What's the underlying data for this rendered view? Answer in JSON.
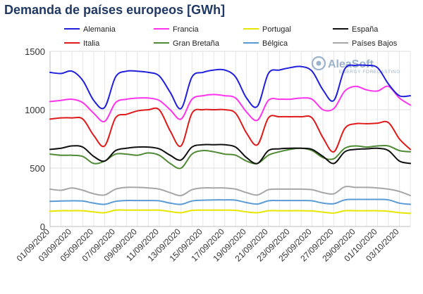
{
  "title": "Demanda de países europeos [GWh]",
  "watermark": {
    "brand": "AleaSoft",
    "tagline": "ENERGY FORECASTING"
  },
  "chart_data": {
    "type": "line",
    "title": "Demanda de países europeos [GWh]",
    "xlabel": "",
    "ylabel": "",
    "ylim": [
      0,
      1500
    ],
    "yticks": [
      0,
      500,
      1000,
      1500
    ],
    "grid": true,
    "legend_position": "top",
    "x": [
      "01/09/2020",
      "02/09/2020",
      "03/09/2020",
      "04/09/2020",
      "05/09/2020",
      "06/09/2020",
      "07/09/2020",
      "08/09/2020",
      "09/09/2020",
      "10/09/2020",
      "11/09/2020",
      "12/09/2020",
      "13/09/2020",
      "14/09/2020",
      "15/09/2020",
      "16/09/2020",
      "17/09/2020",
      "18/09/2020",
      "19/09/2020",
      "20/09/2020",
      "21/09/2020",
      "22/09/2020",
      "23/09/2020",
      "24/09/2020",
      "25/09/2020",
      "26/09/2020",
      "27/09/2020",
      "28/09/2020",
      "29/09/2020",
      "30/09/2020",
      "01/10/2020",
      "02/10/2020",
      "03/10/2020",
      "04/10/2020"
    ],
    "xtick_labels": [
      "01/09/2020",
      "03/09/2020",
      "05/09/2020",
      "07/09/2020",
      "09/09/2020",
      "11/09/2020",
      "13/09/2020",
      "15/09/2020",
      "17/09/2020",
      "19/09/2020",
      "21/09/2020",
      "23/09/2020",
      "25/09/2020",
      "27/09/2020",
      "29/09/2020",
      "01/10/2020",
      "03/10/2020"
    ],
    "series": [
      {
        "name": "Alemania",
        "color": "#1f1fdc",
        "values": [
          1320,
          1310,
          1330,
          1250,
          1080,
          1020,
          1280,
          1330,
          1330,
          1320,
          1290,
          1150,
          1010,
          1280,
          1320,
          1340,
          1340,
          1280,
          1100,
          1030,
          1310,
          1340,
          1360,
          1370,
          1330,
          1170,
          1080,
          1350,
          1380,
          1380,
          1360,
          1220,
          1120,
          1120
        ]
      },
      {
        "name": "Francia",
        "color": "#ff33ee",
        "values": [
          1070,
          1080,
          1090,
          1060,
          970,
          900,
          1060,
          1090,
          1100,
          1100,
          1080,
          1000,
          920,
          1090,
          1120,
          1130,
          1120,
          1100,
          980,
          910,
          1080,
          1090,
          1090,
          1100,
          1090,
          1000,
          1010,
          1160,
          1200,
          1170,
          1160,
          1200,
          1100,
          1040
        ]
      },
      {
        "name": "Portugal",
        "color": "#e6e600",
        "values": [
          130,
          135,
          135,
          135,
          125,
          118,
          140,
          140,
          140,
          140,
          140,
          128,
          118,
          138,
          140,
          140,
          140,
          138,
          125,
          118,
          135,
          135,
          135,
          135,
          133,
          123,
          115,
          135,
          135,
          135,
          135,
          130,
          118,
          112
        ]
      },
      {
        "name": "España",
        "color": "#111111",
        "values": [
          660,
          670,
          690,
          680,
          600,
          560,
          650,
          670,
          680,
          680,
          665,
          610,
          570,
          680,
          700,
          700,
          700,
          680,
          590,
          540,
          650,
          665,
          670,
          670,
          660,
          600,
          540,
          640,
          660,
          665,
          670,
          650,
          560,
          540
        ]
      },
      {
        "name": "Italia",
        "color": "#e01a1a",
        "values": [
          920,
          930,
          930,
          920,
          780,
          690,
          930,
          960,
          990,
          1000,
          1000,
          820,
          690,
          970,
          1000,
          1000,
          1000,
          970,
          800,
          700,
          930,
          940,
          940,
          940,
          930,
          760,
          640,
          840,
          880,
          880,
          885,
          890,
          750,
          660
        ]
      },
      {
        "name": "Gran Bretaña",
        "color": "#4f8a34",
        "values": [
          620,
          610,
          610,
          600,
          540,
          560,
          620,
          620,
          610,
          630,
          610,
          540,
          500,
          620,
          650,
          640,
          620,
          610,
          560,
          540,
          610,
          640,
          660,
          670,
          650,
          590,
          580,
          670,
          690,
          680,
          690,
          690,
          650,
          640
        ]
      },
      {
        "name": "Bélgica",
        "color": "#5b9bd5",
        "values": [
          215,
          218,
          220,
          218,
          200,
          190,
          215,
          222,
          222,
          222,
          220,
          200,
          190,
          218,
          225,
          228,
          228,
          225,
          205,
          192,
          220,
          222,
          222,
          222,
          220,
          200,
          195,
          228,
          232,
          232,
          232,
          228,
          200,
          190
        ]
      },
      {
        "name": "Países Bajos",
        "color": "#a6a6a6",
        "values": [
          320,
          310,
          330,
          310,
          280,
          270,
          320,
          335,
          335,
          330,
          320,
          290,
          265,
          315,
          330,
          330,
          330,
          320,
          290,
          270,
          315,
          320,
          320,
          320,
          315,
          290,
          280,
          340,
          335,
          335,
          330,
          320,
          300,
          265
        ]
      }
    ]
  }
}
